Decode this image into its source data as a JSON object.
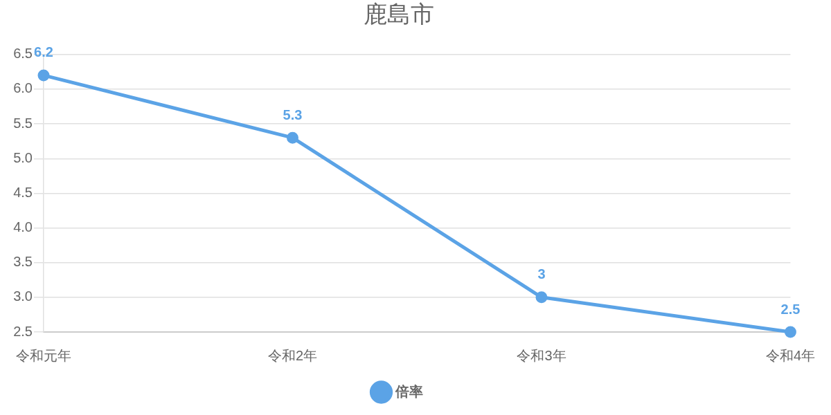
{
  "chart_data": {
    "type": "line",
    "title": "鹿島市",
    "categories": [
      "令和元年",
      "令和2年",
      "令和3年",
      "令和4年"
    ],
    "series": [
      {
        "name": "倍率",
        "color": "#5ba3e6",
        "values": [
          6.2,
          5.3,
          3,
          2.5
        ]
      }
    ],
    "ylim": [
      2.5,
      6.5
    ],
    "yticks": [
      2.5,
      {
        "value": 3,
        "label": "3.0"
      },
      3.5,
      {
        "value": 4,
        "label": "4.0"
      },
      4.5,
      {
        "value": 5,
        "label": "5.0"
      },
      5.5,
      {
        "value": 6,
        "label": "6.0"
      },
      6.5
    ],
    "grid": "y",
    "legend": "bottom",
    "marker": "circle",
    "line_style": "solid",
    "data_labels": true
  }
}
